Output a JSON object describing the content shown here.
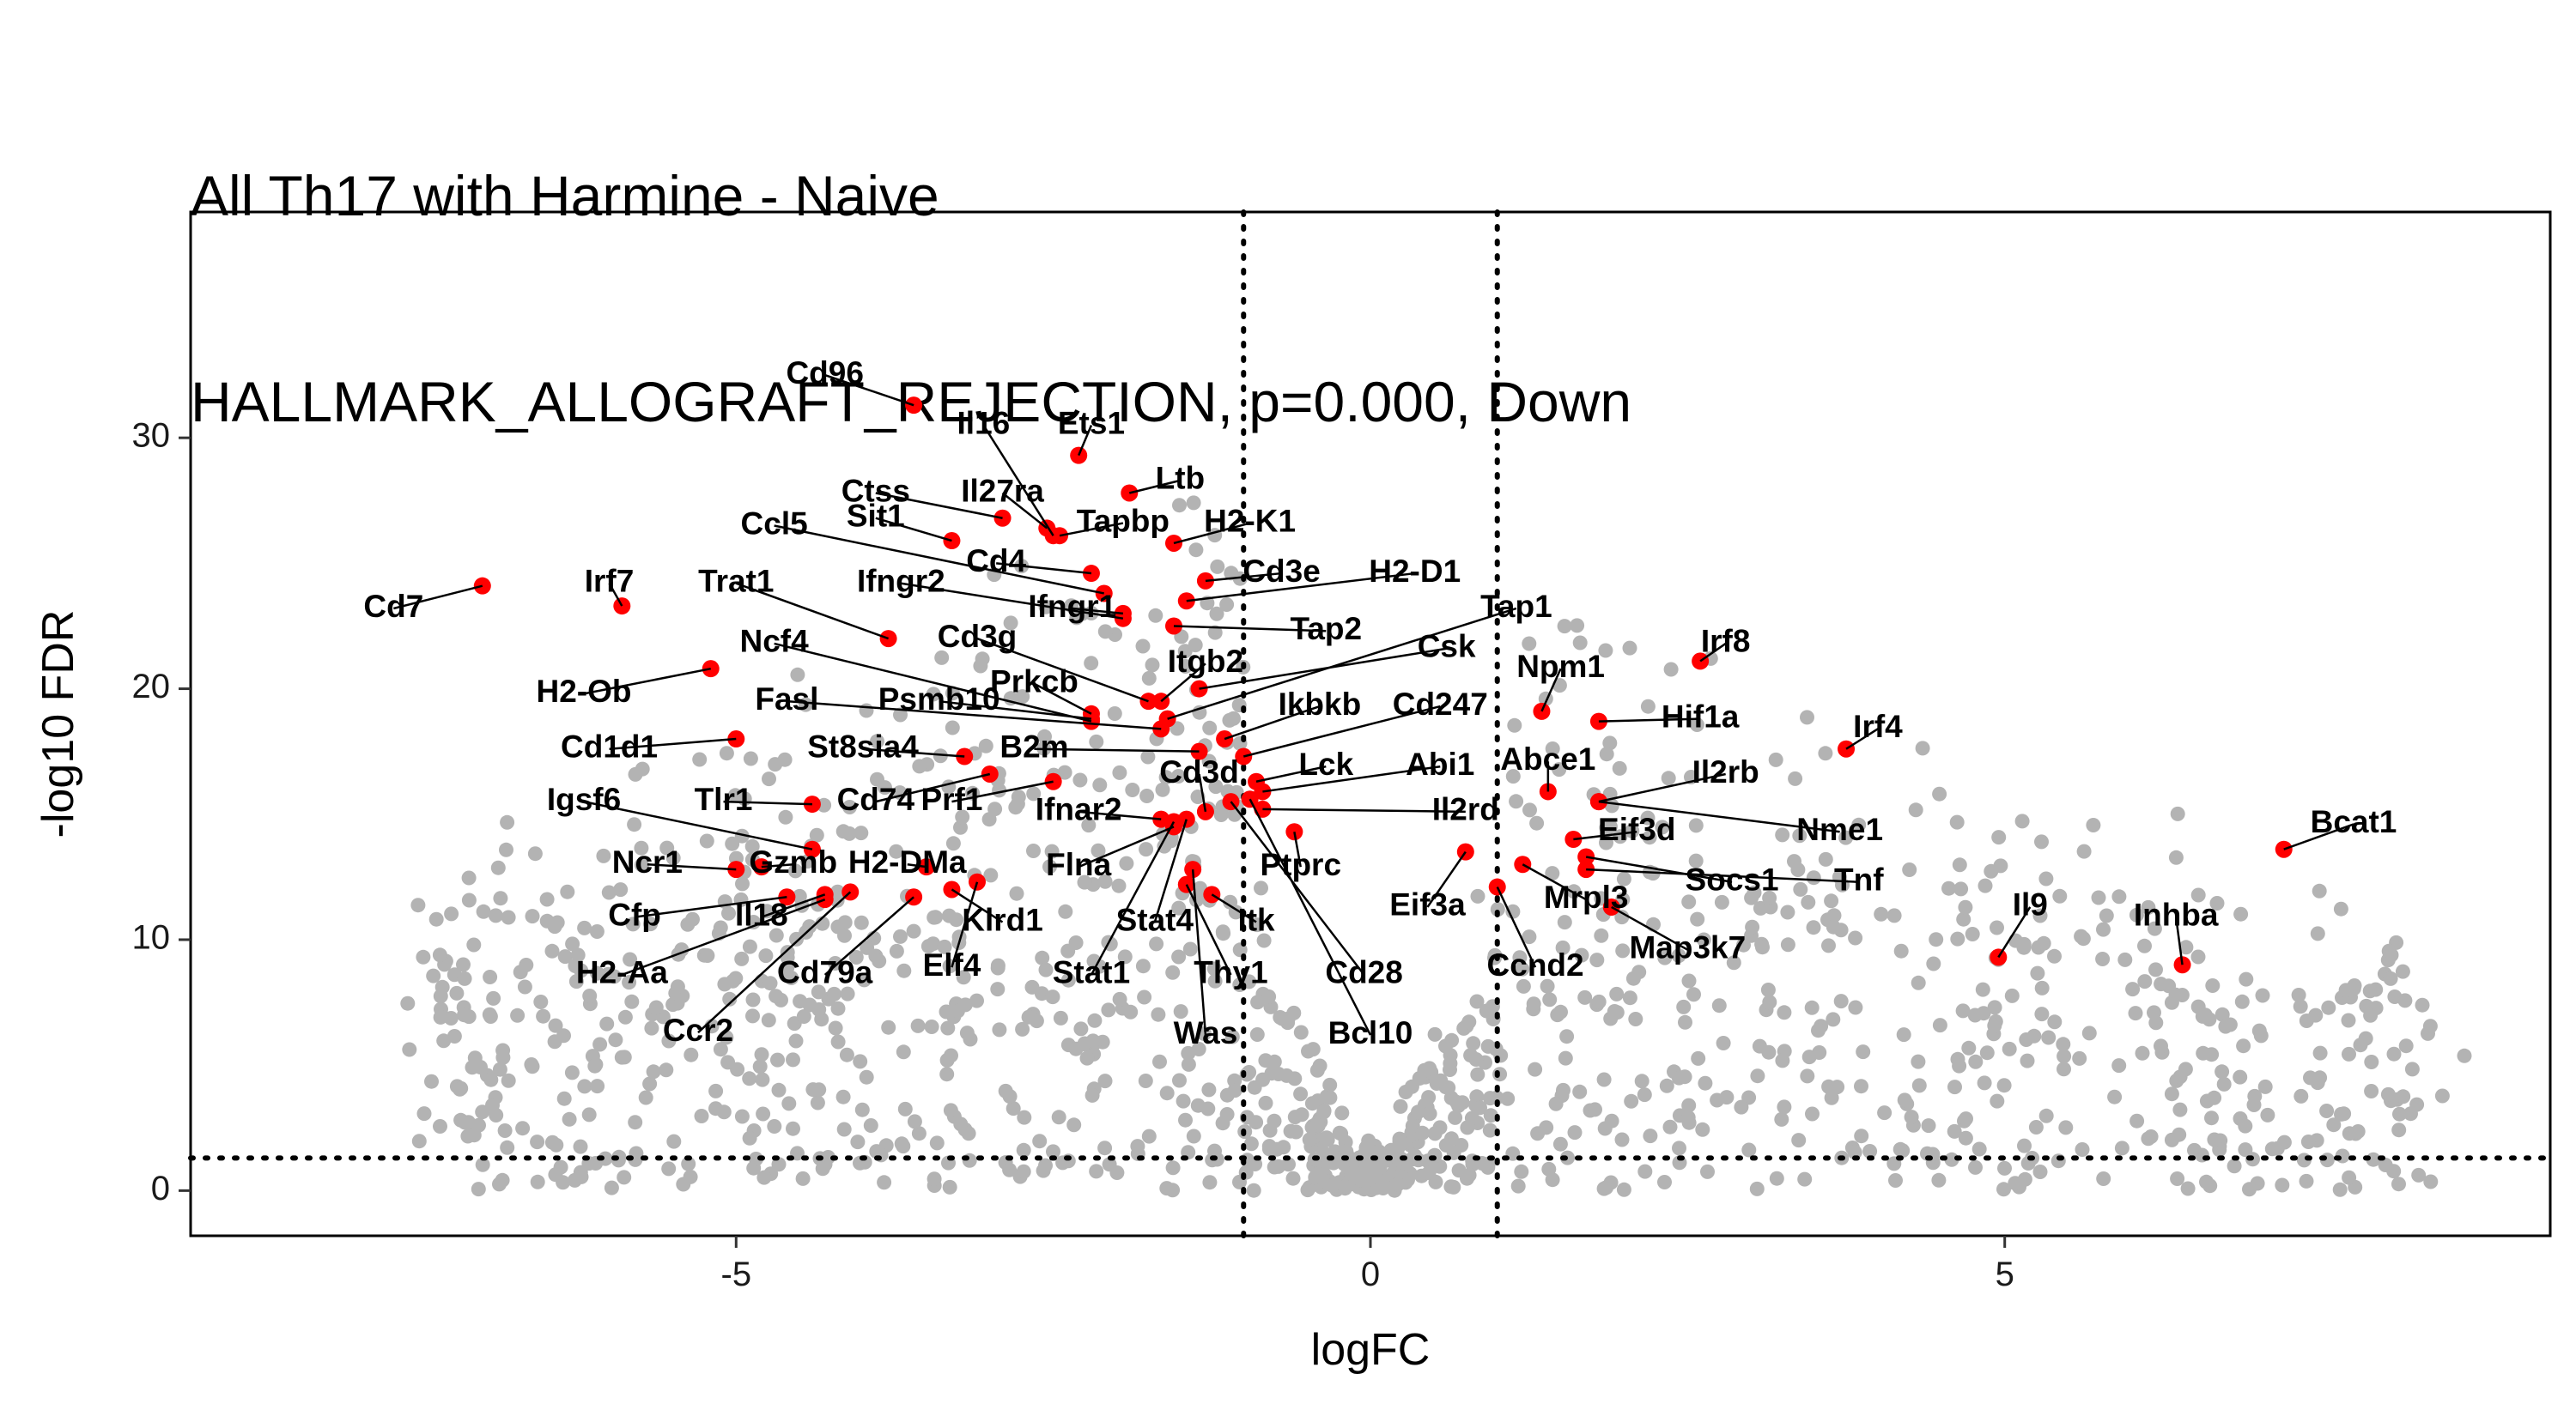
{
  "title_line1": "All Th17 with Harmine - Naive",
  "title_line2": "HALLMARK_ALLOGRAFT_REJECTION, p=0.000, Down",
  "colors": {
    "background_genes": "#b3b3b3",
    "pathway_genes": "#ff0000",
    "frame": "#000000"
  },
  "chart_data": {
    "type": "scatter",
    "xlabel": "logFC",
    "ylabel": "-log10 FDR",
    "xlim": [
      -9.3,
      9.3
    ],
    "ylim": [
      -1.8,
      39
    ],
    "xticks": [
      -5,
      0,
      5
    ],
    "yticks": [
      0,
      10,
      20,
      30
    ],
    "grid": false,
    "legend": "none",
    "thresholds": {
      "logFC": [
        -1,
        1
      ],
      "neg_log10_fdr": 1.3
    },
    "highlighted_genes": [
      {
        "gene": "Cd96",
        "x": -3.6,
        "y": 31.3,
        "lx": -4.3,
        "ly": 32.5
      },
      {
        "gene": "Il16",
        "x": -2.5,
        "y": 26.1,
        "lx": -3.05,
        "ly": 30.5
      },
      {
        "gene": "Ets1",
        "x": -2.3,
        "y": 29.3,
        "lx": -2.2,
        "ly": 30.5
      },
      {
        "gene": "Ctss",
        "x": -2.9,
        "y": 26.8,
        "lx": -3.9,
        "ly": 27.8
      },
      {
        "gene": "Il27ra",
        "x": -2.55,
        "y": 26.4,
        "lx": -2.9,
        "ly": 27.8
      },
      {
        "gene": "Ltb",
        "x": -1.9,
        "y": 27.8,
        "lx": -1.5,
        "ly": 28.3
      },
      {
        "gene": "Sit1",
        "x": -3.3,
        "y": 25.9,
        "lx": -3.9,
        "ly": 26.8
      },
      {
        "gene": "Tapbp",
        "x": -2.45,
        "y": 26.1,
        "lx": -1.95,
        "ly": 26.6
      },
      {
        "gene": "H2-K1",
        "x": -1.55,
        "y": 25.8,
        "lx": -0.95,
        "ly": 26.6
      },
      {
        "gene": "Ccl5",
        "x": -2.1,
        "y": 23.8,
        "lx": -4.7,
        "ly": 26.5
      },
      {
        "gene": "Cd4",
        "x": -2.2,
        "y": 24.6,
        "lx": -2.95,
        "ly": 25.0
      },
      {
        "gene": "Cd3e",
        "x": -1.3,
        "y": 24.3,
        "lx": -0.7,
        "ly": 24.6
      },
      {
        "gene": "H2-D1",
        "x": -1.45,
        "y": 23.5,
        "lx": 0.35,
        "ly": 24.6
      },
      {
        "gene": "Irf7",
        "x": -5.9,
        "y": 23.3,
        "lx": -6.0,
        "ly": 24.2
      },
      {
        "gene": "Trat1",
        "x": -3.8,
        "y": 22.0,
        "lx": -5.0,
        "ly": 24.2
      },
      {
        "gene": "Ifngr2",
        "x": -1.95,
        "y": 22.8,
        "lx": -3.7,
        "ly": 24.2
      },
      {
        "gene": "Ifngr1",
        "x": -1.95,
        "y": 23.0,
        "lx": -2.35,
        "ly": 23.2
      },
      {
        "gene": "Cd7",
        "x": -7.0,
        "y": 24.1,
        "lx": -7.7,
        "ly": 23.2
      },
      {
        "gene": "Tap1",
        "x": -1.6,
        "y": 18.8,
        "lx": 1.15,
        "ly": 23.2
      },
      {
        "gene": "Tap2",
        "x": -1.55,
        "y": 22.5,
        "lx": -0.35,
        "ly": 22.3
      },
      {
        "gene": "Cd3g",
        "x": -1.75,
        "y": 19.5,
        "lx": -3.1,
        "ly": 22.0
      },
      {
        "gene": "Ncf4",
        "x": -2.2,
        "y": 18.7,
        "lx": -4.7,
        "ly": 21.8
      },
      {
        "gene": "Csk",
        "x": -1.35,
        "y": 20.0,
        "lx": 0.6,
        "ly": 21.6
      },
      {
        "gene": "Itgb2",
        "x": -1.65,
        "y": 19.5,
        "lx": -1.3,
        "ly": 21.0
      },
      {
        "gene": "Npm1",
        "x": 1.35,
        "y": 19.1,
        "lx": 1.5,
        "ly": 20.8
      },
      {
        "gene": "Irf8",
        "x": 2.6,
        "y": 21.1,
        "lx": 2.8,
        "ly": 21.8
      },
      {
        "gene": "Prkcb",
        "x": -2.2,
        "y": 19.0,
        "lx": -2.65,
        "ly": 20.2
      },
      {
        "gene": "H2-Ob",
        "x": -5.2,
        "y": 20.8,
        "lx": -6.2,
        "ly": 19.8
      },
      {
        "gene": "Fasl",
        "x": -1.65,
        "y": 18.4,
        "lx": -4.6,
        "ly": 19.5
      },
      {
        "gene": "Psmb10",
        "x": -2.2,
        "y": 18.8,
        "lx": -3.4,
        "ly": 19.5
      },
      {
        "gene": "Ikbkb",
        "x": -1.15,
        "y": 18.0,
        "lx": -0.4,
        "ly": 19.3
      },
      {
        "gene": "Cd247",
        "x": -1.0,
        "y": 17.3,
        "lx": 0.55,
        "ly": 19.3
      },
      {
        "gene": "Hif1a",
        "x": 1.8,
        "y": 18.7,
        "lx": 2.6,
        "ly": 18.8
      },
      {
        "gene": "Irf4",
        "x": 3.75,
        "y": 17.6,
        "lx": 4.0,
        "ly": 18.4
      },
      {
        "gene": "Cd1d1",
        "x": -5.0,
        "y": 18.0,
        "lx": -6.0,
        "ly": 17.6
      },
      {
        "gene": "St8sia4",
        "x": -3.2,
        "y": 17.3,
        "lx": -4.0,
        "ly": 17.6
      },
      {
        "gene": "B2m",
        "x": -1.35,
        "y": 17.5,
        "lx": -2.65,
        "ly": 17.6
      },
      {
        "gene": "Lck",
        "x": -0.9,
        "y": 16.3,
        "lx": -0.35,
        "ly": 16.9
      },
      {
        "gene": "Abi1",
        "x": -0.85,
        "y": 15.9,
        "lx": 0.55,
        "ly": 16.9
      },
      {
        "gene": "Abce1",
        "x": 1.4,
        "y": 15.9,
        "lx": 1.4,
        "ly": 17.1
      },
      {
        "gene": "Il2rb",
        "x": 1.8,
        "y": 15.5,
        "lx": 2.8,
        "ly": 16.6
      },
      {
        "gene": "Cd3d",
        "x": -1.3,
        "y": 15.1,
        "lx": -1.35,
        "ly": 16.6
      },
      {
        "gene": "Tlr1",
        "x": -4.4,
        "y": 15.4,
        "lx": -5.1,
        "ly": 15.5
      },
      {
        "gene": "Cd74",
        "x": -3.0,
        "y": 16.6,
        "lx": -3.9,
        "ly": 15.5
      },
      {
        "gene": "Prf1",
        "x": -2.5,
        "y": 16.3,
        "lx": -3.3,
        "ly": 15.5
      },
      {
        "gene": "Igsf6",
        "x": -4.4,
        "y": 13.6,
        "lx": -6.2,
        "ly": 15.5
      },
      {
        "gene": "Ifnar2",
        "x": -1.65,
        "y": 14.8,
        "lx": -2.3,
        "ly": 15.1
      },
      {
        "gene": "Il2rd",
        "x": -0.85,
        "y": 15.2,
        "lx": 0.75,
        "ly": 15.1
      },
      {
        "gene": "Eif3d",
        "x": 1.6,
        "y": 14.0,
        "lx": 2.1,
        "ly": 14.3
      },
      {
        "gene": "Nme1",
        "x": 1.8,
        "y": 15.5,
        "lx": 3.7,
        "ly": 14.3
      },
      {
        "gene": "Bcat1",
        "x": 7.2,
        "y": 13.6,
        "lx": 7.75,
        "ly": 14.6
      },
      {
        "gene": "Ncr1",
        "x": -5.0,
        "y": 12.8,
        "lx": -5.7,
        "ly": 13.0
      },
      {
        "gene": "Gzmb",
        "x": -4.8,
        "y": 12.9,
        "lx": -4.55,
        "ly": 13.0
      },
      {
        "gene": "H2-DMa",
        "x": -3.5,
        "y": 12.9,
        "lx": -3.65,
        "ly": 13.0
      },
      {
        "gene": "Flna",
        "x": -1.55,
        "y": 14.5,
        "lx": -2.3,
        "ly": 12.9
      },
      {
        "gene": "Ptprc",
        "x": -0.6,
        "y": 14.3,
        "lx": -0.55,
        "ly": 12.9
      },
      {
        "gene": "Socs1",
        "x": 1.7,
        "y": 13.3,
        "lx": 2.85,
        "ly": 12.3
      },
      {
        "gene": "Tnf",
        "x": 1.7,
        "y": 12.8,
        "lx": 3.85,
        "ly": 12.3
      },
      {
        "gene": "Mrpl3",
        "x": 1.2,
        "y": 13.0,
        "lx": 1.7,
        "ly": 11.6
      },
      {
        "gene": "Eif3a",
        "x": 0.75,
        "y": 13.5,
        "lx": 0.45,
        "ly": 11.3
      },
      {
        "gene": "Il9",
        "x": 4.95,
        "y": 9.3,
        "lx": 5.2,
        "ly": 11.3
      },
      {
        "gene": "Inhba",
        "x": 6.4,
        "y": 9.0,
        "lx": 6.35,
        "ly": 10.9
      },
      {
        "gene": "Cfp",
        "x": -4.6,
        "y": 11.7,
        "lx": -5.8,
        "ly": 10.9
      },
      {
        "gene": "Il18",
        "x": -4.3,
        "y": 11.8,
        "lx": -4.8,
        "ly": 10.9
      },
      {
        "gene": "Klrd1",
        "x": -3.3,
        "y": 12.0,
        "lx": -2.9,
        "ly": 10.7
      },
      {
        "gene": "Stat4",
        "x": -1.45,
        "y": 14.8,
        "lx": -1.7,
        "ly": 10.7
      },
      {
        "gene": "Itk",
        "x": -1.25,
        "y": 11.8,
        "lx": -0.9,
        "ly": 10.7
      },
      {
        "gene": "Map3k7",
        "x": 1.9,
        "y": 11.3,
        "lx": 2.5,
        "ly": 9.6
      },
      {
        "gene": "Elf4",
        "x": -3.1,
        "y": 12.3,
        "lx": -3.3,
        "ly": 8.9
      },
      {
        "gene": "Stat1",
        "x": -1.55,
        "y": 14.7,
        "lx": -2.2,
        "ly": 8.6
      },
      {
        "gene": "Thy1",
        "x": -1.45,
        "y": 12.2,
        "lx": -1.1,
        "ly": 8.6
      },
      {
        "gene": "Cd28",
        "x": -1.1,
        "y": 15.5,
        "lx": -0.05,
        "ly": 8.6
      },
      {
        "gene": "Ccnd2",
        "x": 1.0,
        "y": 12.1,
        "lx": 1.3,
        "ly": 8.9
      },
      {
        "gene": "H2-Aa",
        "x": -4.3,
        "y": 11.6,
        "lx": -5.9,
        "ly": 8.6
      },
      {
        "gene": "Cd79a",
        "x": -3.6,
        "y": 11.7,
        "lx": -4.3,
        "ly": 8.6
      },
      {
        "gene": "Ccr2",
        "x": -4.1,
        "y": 11.9,
        "lx": -5.3,
        "ly": 6.3
      },
      {
        "gene": "Was",
        "x": -1.4,
        "y": 12.8,
        "lx": -1.3,
        "ly": 6.2
      },
      {
        "gene": "Bcl10",
        "x": -0.95,
        "y": 15.6,
        "lx": 0.0,
        "ly": 6.2
      }
    ]
  }
}
